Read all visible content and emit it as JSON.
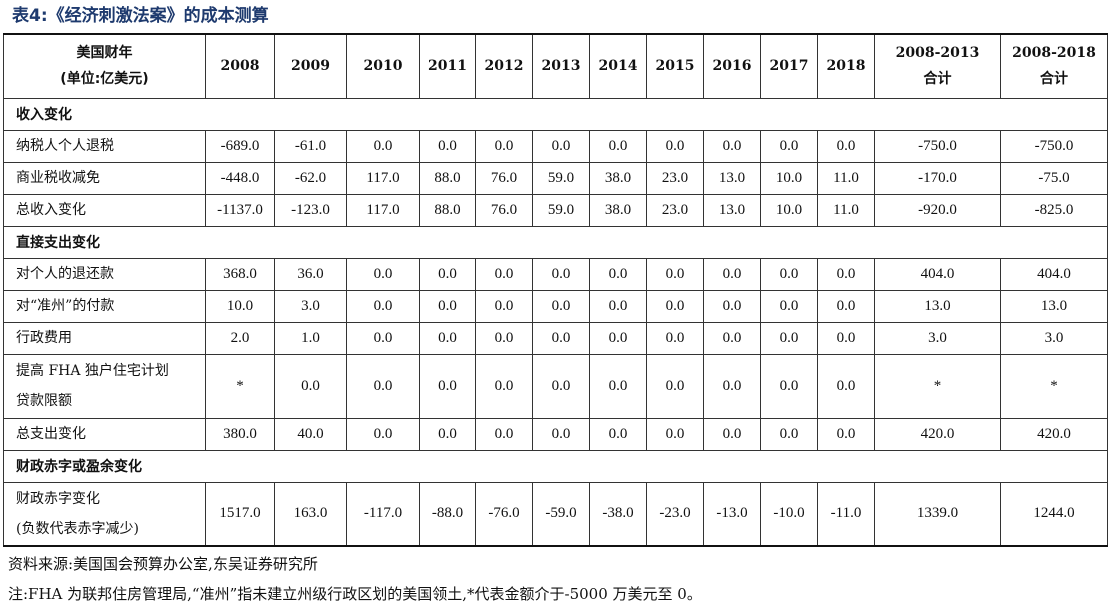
{
  "title": "表4:《经济刺激法案》的成本测算",
  "header": {
    "first_line1": "美国财年",
    "first_line2": "(单位:亿美元)",
    "years": [
      "2008",
      "2009",
      "2010",
      "2011",
      "2012",
      "2013",
      "2014",
      "2015",
      "2016",
      "2017",
      "2018"
    ],
    "total1_line1": "2008-2013",
    "total1_line2": "合计",
    "total2_line1": "2008-2018",
    "total2_line2": "合计"
  },
  "sections": [
    {
      "title": "收入变化",
      "rows": [
        {
          "label": [
            "纳税人个人退税"
          ],
          "values": [
            "-689.0",
            "-61.0",
            "0.0",
            "0.0",
            "0.0",
            "0.0",
            "0.0",
            "0.0",
            "0.0",
            "0.0",
            "0.0",
            "-750.0",
            "-750.0"
          ]
        },
        {
          "label": [
            "商业税收减免"
          ],
          "values": [
            "-448.0",
            "-62.0",
            "117.0",
            "88.0",
            "76.0",
            "59.0",
            "38.0",
            "23.0",
            "13.0",
            "10.0",
            "11.0",
            "-170.0",
            "-75.0"
          ]
        },
        {
          "label": [
            "总收入变化"
          ],
          "values": [
            "-1137.0",
            "-123.0",
            "117.0",
            "88.0",
            "76.0",
            "59.0",
            "38.0",
            "23.0",
            "13.0",
            "10.0",
            "11.0",
            "-920.0",
            "-825.0"
          ]
        }
      ]
    },
    {
      "title": "直接支出变化",
      "rows": [
        {
          "label": [
            "对个人的退还款"
          ],
          "values": [
            "368.0",
            "36.0",
            "0.0",
            "0.0",
            "0.0",
            "0.0",
            "0.0",
            "0.0",
            "0.0",
            "0.0",
            "0.0",
            "404.0",
            "404.0"
          ]
        },
        {
          "label": [
            "对“准州”的付款"
          ],
          "values": [
            "10.0",
            "3.0",
            "0.0",
            "0.0",
            "0.0",
            "0.0",
            "0.0",
            "0.0",
            "0.0",
            "0.0",
            "0.0",
            "13.0",
            "13.0"
          ]
        },
        {
          "label": [
            "行政费用"
          ],
          "values": [
            "2.0",
            "1.0",
            "0.0",
            "0.0",
            "0.0",
            "0.0",
            "0.0",
            "0.0",
            "0.0",
            "0.0",
            "0.0",
            "3.0",
            "3.0"
          ]
        },
        {
          "label": [
            "提高 FHA 独户住宅计划",
            "贷款限额"
          ],
          "values": [
            "*",
            "0.0",
            "0.0",
            "0.0",
            "0.0",
            "0.0",
            "0.0",
            "0.0",
            "0.0",
            "0.0",
            "0.0",
            "*",
            "*"
          ]
        },
        {
          "label": [
            "总支出变化"
          ],
          "values": [
            "380.0",
            "40.0",
            "0.0",
            "0.0",
            "0.0",
            "0.0",
            "0.0",
            "0.0",
            "0.0",
            "0.0",
            "0.0",
            "420.0",
            "420.0"
          ]
        }
      ]
    },
    {
      "title": "财政赤字或盈余变化",
      "rows": [
        {
          "label": [
            "财政赤字变化",
            "(负数代表赤字减少)"
          ],
          "values": [
            "1517.0",
            "163.0",
            "-117.0",
            "-88.0",
            "-76.0",
            "-59.0",
            "-38.0",
            "-23.0",
            "-13.0",
            "-10.0",
            "-11.0",
            "1339.0",
            "1244.0"
          ]
        }
      ]
    }
  ],
  "source": "资料来源:美国国会预算办公室,东吴证券研究所",
  "note": "注:FHA 为联邦住房管理局,“准州”指未建立州级行政区划的美国领土,*代表金额介于-5000 万美元至 0。"
}
